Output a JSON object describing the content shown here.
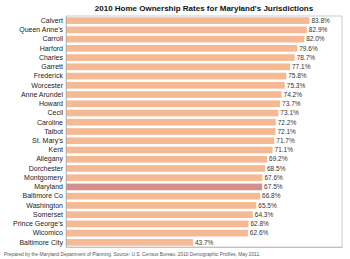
{
  "chart_data": {
    "type": "bar",
    "orientation": "horizontal",
    "title": "2010 Home Ownership Rates for Maryland's Jurisdictions",
    "categories": [
      "Baltimore City",
      "Wicomico",
      "Prince George's",
      "Somerset",
      "Washington",
      "Baltimore Co",
      "Maryland",
      "Montgomery",
      "Dorchester",
      "Allegany",
      "Kent",
      "St. Mary's",
      "Talbot",
      "Caroline",
      "Cecil",
      "Howard",
      "Anne Arundel",
      "Worcester",
      "Frederick",
      "Garrett",
      "Charles",
      "Harford",
      "Carroll",
      "Queen Anne's",
      "Calvert"
    ],
    "values": [
      43.7,
      62.6,
      62.8,
      64.3,
      65.5,
      66.8,
      67.5,
      67.6,
      68.5,
      69.2,
      71.1,
      71.7,
      72.1,
      72.2,
      73.1,
      73.7,
      74.2,
      75.3,
      75.8,
      77.1,
      78.7,
      79.6,
      82.0,
      82.9,
      83.8
    ],
    "value_labels": [
      "43.7%",
      "62.6%",
      "62.8%",
      "64.3%",
      "65.5%",
      "66.8%",
      "67.5%",
      "67.6%",
      "68.5%",
      "69.2%",
      "71.1%",
      "71.7%",
      "72.1%",
      "72.2%",
      "73.1%",
      "73.7%",
      "74.2%",
      "75.3%",
      "75.8%",
      "77.1%",
      "78.7%",
      "79.6%",
      "82.0%",
      "82.9%",
      "83.8%"
    ],
    "data_labels": true,
    "colors": [
      "#F5B993",
      "#F5B993",
      "#F5B993",
      "#F5B993",
      "#F5B993",
      "#F5B993",
      "#D4908A",
      "#F5B993",
      "#F5B993",
      "#F5B993",
      "#F5B993",
      "#F5B993",
      "#F5B993",
      "#F5B993",
      "#F5B993",
      "#F5B993",
      "#F5B993",
      "#F5B993",
      "#F5B993",
      "#F5B993",
      "#F5B993",
      "#F5B993",
      "#F5B993",
      "#F5B993",
      "#F5B993"
    ],
    "xlim": [
      0,
      95
    ],
    "tick_labels": "y",
    "annotations": [
      "Prepared by the Maryland Department of Planning.  Source: U.S. Census Bureau, 2010 Demographic Profiles, May 2011."
    ]
  }
}
